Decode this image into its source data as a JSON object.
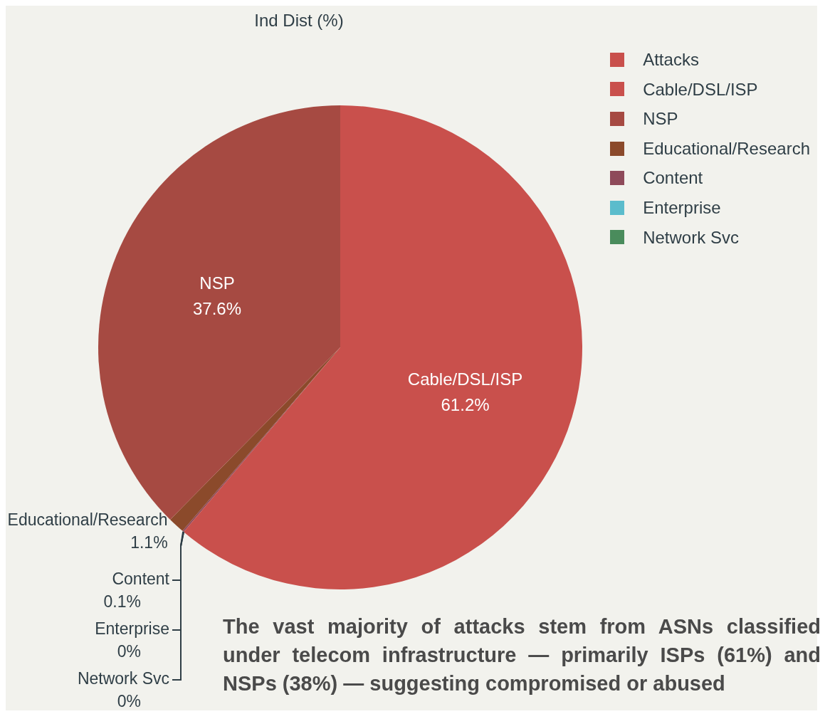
{
  "chart_data": {
    "type": "pie",
    "title": "Ind Dist (%)",
    "legend_title": "Attacks",
    "legend": "top right",
    "categories": [
      "Cable/DSL/ISP",
      "NSP",
      "Educational/Research",
      "Content",
      "Enterprise",
      "Network Svc"
    ],
    "values": [
      61.2,
      37.6,
      1.1,
      0.1,
      0,
      0
    ],
    "value_labels": [
      "61.2%",
      "37.6%",
      "1.1%",
      "0.1%",
      "0%",
      "0%"
    ],
    "colors": [
      "#c9504c",
      "#a64a42",
      "#8b4a2b",
      "#8e4a5a",
      "#5bbccc",
      "#4a8c5c"
    ],
    "annotations": [
      "The vast majority of attacks stem from ASNs classified under telecom infrastructure — primarily ISPs (61%) and NSPs (38%) — suggesting compromised or abused"
    ]
  }
}
